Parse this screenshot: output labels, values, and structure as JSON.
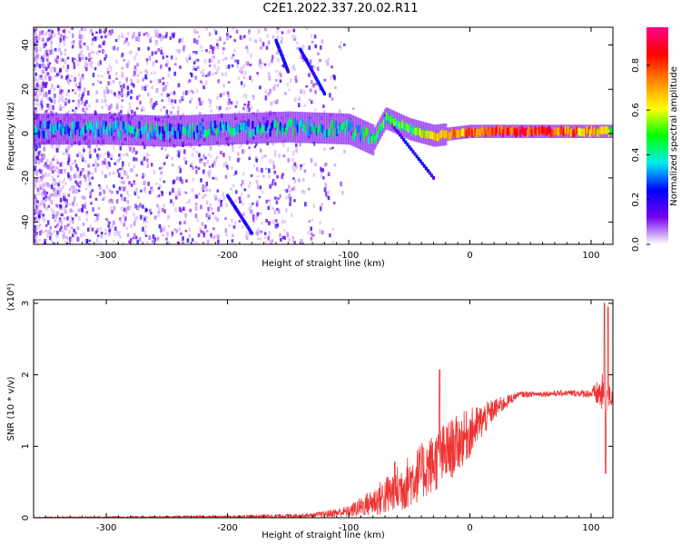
{
  "title": "C2E1.2022.337.20.02.R11",
  "chart_data": [
    {
      "type": "heatmap",
      "xlabel": "Height of straight line (km)",
      "ylabel": "Frequency (Hz)",
      "xlim": [
        -360,
        118
      ],
      "ylim": [
        -50,
        48
      ],
      "xticks": [
        -300,
        -200,
        -100,
        0,
        100
      ],
      "yticks": [
        -40,
        -20,
        0,
        20,
        40
      ],
      "colorbar": {
        "label": "Normalized spectral amplitude",
        "range": [
          0.0,
          0.97
        ],
        "ticks": [
          0.0,
          0.2,
          0.4,
          0.6,
          0.8
        ],
        "colormap": [
          "#ffffff",
          "#7700ee",
          "#0000ff",
          "#00eeee",
          "#00ff00",
          "#ffff00",
          "#ff8800",
          "#ff0000",
          "#ff0088"
        ]
      },
      "ridge": [
        {
          "x": -360,
          "f": 2,
          "amp": 0.3
        },
        {
          "x": -300,
          "f": 2,
          "amp": 0.35
        },
        {
          "x": -250,
          "f": 1,
          "amp": 0.35
        },
        {
          "x": -200,
          "f": 2,
          "amp": 0.35
        },
        {
          "x": -150,
          "f": 3,
          "amp": 0.35
        },
        {
          "x": -100,
          "f": 2,
          "amp": 0.4
        },
        {
          "x": -80,
          "f": -3,
          "amp": 0.45
        },
        {
          "x": -70,
          "f": 7,
          "amp": 0.45
        },
        {
          "x": -50,
          "f": 2,
          "amp": 0.5
        },
        {
          "x": -30,
          "f": -1,
          "amp": 0.6
        },
        {
          "x": 0,
          "f": 1,
          "amp": 0.8
        },
        {
          "x": 50,
          "f": 1,
          "amp": 0.85
        },
        {
          "x": 100,
          "f": 1,
          "amp": 0.7
        },
        {
          "x": 118,
          "f": 1,
          "amp": 0.55
        }
      ],
      "streaks": [
        {
          "x": [
            -160,
            -150
          ],
          "f": [
            42,
            28
          ]
        },
        {
          "x": [
            -140,
            -120
          ],
          "f": [
            38,
            18
          ]
        },
        {
          "x": [
            -200,
            -180
          ],
          "f": [
            -28,
            -45
          ]
        },
        {
          "x": [
            -70,
            -30
          ],
          "f": [
            8,
            -20
          ]
        }
      ]
    },
    {
      "type": "line",
      "xlabel": "Height of straight line (km)",
      "ylabel": "SNR (10 * v/v)",
      "scale_label": "(x10⁴)",
      "xlim": [
        -360,
        118
      ],
      "ylim": [
        0,
        3.05
      ],
      "xticks": [
        -300,
        -200,
        -100,
        0,
        100
      ],
      "yticks": [
        0,
        1,
        2,
        3
      ],
      "color": "#ee3333",
      "envelope": [
        {
          "x": -360,
          "base": 0.0,
          "noise": 0.01
        },
        {
          "x": -200,
          "base": 0.01,
          "noise": 0.02
        },
        {
          "x": -130,
          "base": 0.03,
          "noise": 0.03
        },
        {
          "x": -100,
          "base": 0.08,
          "noise": 0.08
        },
        {
          "x": -80,
          "base": 0.2,
          "noise": 0.2
        },
        {
          "x": -60,
          "base": 0.35,
          "noise": 0.35
        },
        {
          "x": -40,
          "base": 0.6,
          "noise": 0.4
        },
        {
          "x": -20,
          "base": 0.85,
          "noise": 0.45
        },
        {
          "x": 0,
          "base": 1.15,
          "noise": 0.35
        },
        {
          "x": 20,
          "base": 1.5,
          "noise": 0.15
        },
        {
          "x": 40,
          "base": 1.72,
          "noise": 0.04
        },
        {
          "x": 80,
          "base": 1.74,
          "noise": 0.04
        },
        {
          "x": 100,
          "base": 1.73,
          "noise": 0.06
        },
        {
          "x": 110,
          "base": 1.7,
          "noise": 0.3
        },
        {
          "x": 118,
          "base": 1.65,
          "noise": 0.1
        }
      ],
      "spikes": [
        {
          "x": -25,
          "y": 2.07
        },
        {
          "x": -62,
          "y": 0.78
        },
        {
          "x": 111,
          "y": 3.0
        },
        {
          "x": 112,
          "y": 0.62
        },
        {
          "x": 114,
          "y": 2.95
        }
      ]
    }
  ]
}
